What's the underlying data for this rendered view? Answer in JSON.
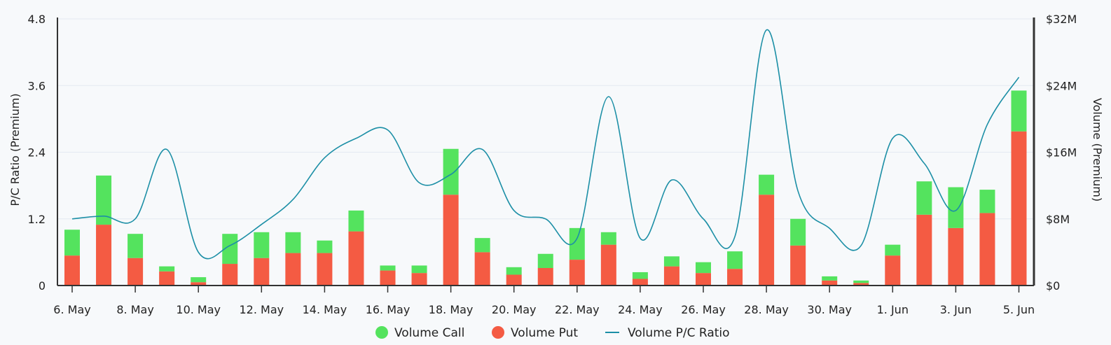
{
  "chart_data": {
    "type": "bar",
    "categories": [
      "6. May",
      "7. May",
      "8. May",
      "9. May",
      "10. May",
      "11. May",
      "12. May",
      "13. May",
      "14. May",
      "15. May",
      "16. May",
      "17. May",
      "18. May",
      "19. May",
      "20. May",
      "21. May",
      "22. May",
      "23. May",
      "24. May",
      "25. May",
      "26. May",
      "27. May",
      "28. May",
      "29. May",
      "30. May",
      "31. May",
      "1. Jun",
      "2. Jun",
      "3. Jun",
      "4. Jun",
      "5. Jun"
    ],
    "x_tick_labels": [
      "6. May",
      "8. May",
      "10. May",
      "12. May",
      "14. May",
      "16. May",
      "18. May",
      "20. May",
      "22. May",
      "24. May",
      "26. May",
      "28. May",
      "30. May",
      "1. Jun",
      "3. Jun",
      "5. Jun"
    ],
    "series": [
      {
        "name": "Volume Put",
        "type": "bar",
        "axis": "right",
        "color": "#f45b43",
        "values": [
          3.6,
          7.3,
          3.3,
          1.7,
          0.4,
          2.6,
          3.3,
          3.9,
          3.9,
          6.5,
          1.8,
          1.5,
          10.9,
          4.0,
          1.3,
          2.1,
          3.1,
          4.9,
          0.8,
          2.3,
          1.5,
          2.0,
          10.9,
          4.8,
          0.6,
          0.3,
          3.6,
          8.5,
          6.9,
          8.7,
          18.5
        ]
      },
      {
        "name": "Volume Call",
        "type": "bar",
        "axis": "right",
        "color": "#54e35e",
        "values": [
          3.1,
          5.9,
          2.9,
          0.6,
          0.6,
          3.6,
          3.1,
          2.5,
          1.5,
          2.5,
          0.6,
          0.9,
          5.5,
          1.7,
          0.9,
          1.7,
          3.8,
          1.5,
          0.8,
          1.2,
          1.3,
          2.1,
          2.4,
          3.2,
          0.5,
          0.3,
          1.3,
          4.0,
          4.9,
          2.8,
          4.9
        ]
      },
      {
        "name": "Volume P/C Ratio",
        "type": "line",
        "axis": "left",
        "color": "#1c8fa6",
        "values": [
          1.2,
          1.25,
          1.2,
          2.45,
          0.6,
          0.72,
          1.1,
          1.55,
          2.3,
          2.65,
          2.8,
          1.85,
          2.0,
          2.45,
          1.35,
          1.2,
          0.85,
          3.4,
          0.85,
          1.9,
          1.2,
          0.88,
          4.6,
          1.7,
          1.03,
          0.72,
          2.65,
          2.2,
          1.35,
          2.9,
          3.75
        ]
      }
    ],
    "ylabel_left": "P/C Ratio (Premium)",
    "ylabel_right": "Volume (Premium)",
    "ylim_left": [
      0,
      4.8
    ],
    "yticks_left": [
      "0",
      "1.2",
      "2.4",
      "3.6",
      "4.8"
    ],
    "ylim_right": [
      0,
      32
    ],
    "yticks_right": [
      "$0",
      "$8M",
      "$16M",
      "$24M",
      "$32M"
    ],
    "stacked": true,
    "grid": true,
    "legend": "bottom-center",
    "legend_items": [
      "Volume Call",
      "Volume Put",
      "Volume P/C Ratio"
    ]
  }
}
